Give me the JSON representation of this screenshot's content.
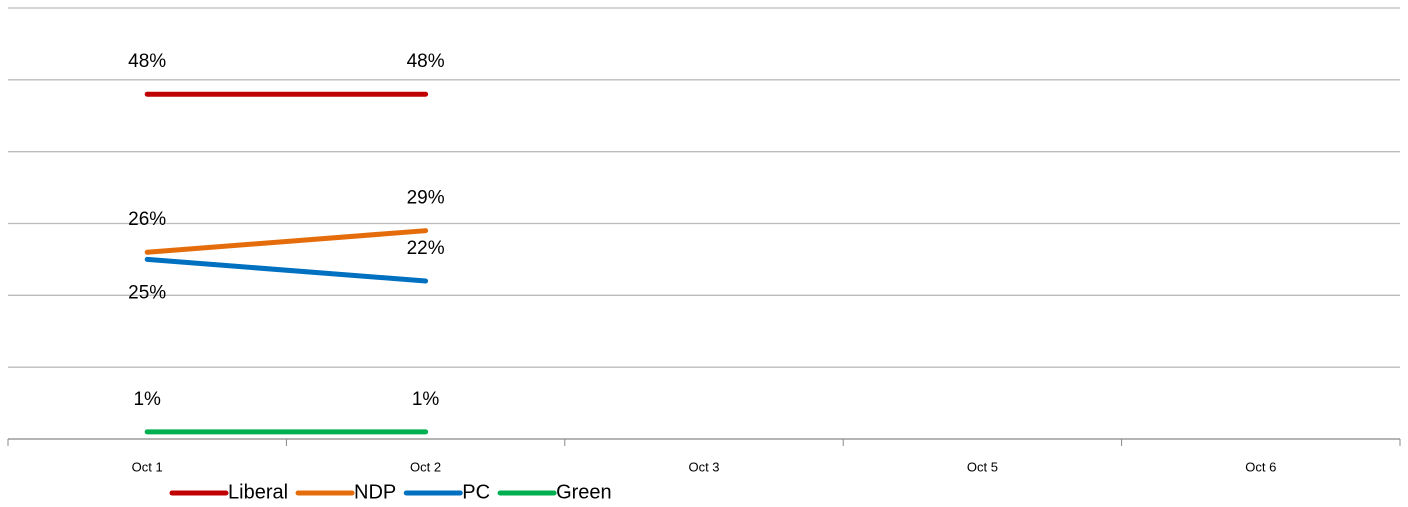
{
  "chart_data": {
    "type": "line",
    "categories": [
      "Oct 1",
      "Oct 2",
      "Oct 3",
      "Oct 5",
      "Oct 6"
    ],
    "series": [
      {
        "name": "Liberal",
        "color": "#c00000",
        "values": [
          48,
          48,
          null,
          null,
          null
        ],
        "value_labels": [
          "48%",
          "48%",
          null,
          null,
          null
        ]
      },
      {
        "name": "NDP",
        "color": "#e46c0a",
        "values": [
          26,
          29,
          null,
          null,
          null
        ],
        "value_labels": [
          "26%",
          "29%",
          null,
          null,
          null
        ]
      },
      {
        "name": "PC",
        "color": "#0070c0",
        "values": [
          25,
          22,
          null,
          null,
          null
        ],
        "value_labels": [
          "25%",
          "22%",
          null,
          null,
          null
        ]
      },
      {
        "name": "Green",
        "color": "#00b050",
        "values": [
          1,
          1,
          null,
          null,
          null
        ],
        "value_labels": [
          "1%",
          "1%",
          null,
          null,
          null
        ]
      }
    ],
    "ylim": [
      0,
      60
    ],
    "yticks": [
      0,
      10,
      20,
      30,
      40,
      50,
      60
    ],
    "grid": true,
    "legend": "bottom"
  }
}
